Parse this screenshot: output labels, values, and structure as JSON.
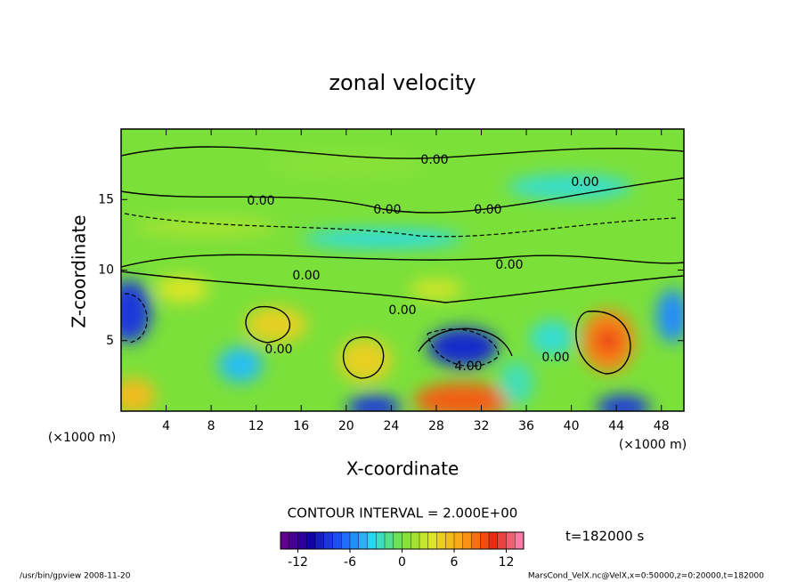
{
  "chart_data": {
    "type": "contour",
    "title": "zonal velocity",
    "xlabel": "X-coordinate",
    "ylabel": "Z-coordinate",
    "x_unit_left": "(×1000 m)",
    "x_unit_right": "(×1000 m)",
    "xlim": [
      0,
      50
    ],
    "xticks": [
      4,
      8,
      12,
      16,
      20,
      24,
      28,
      32,
      36,
      40,
      44,
      48
    ],
    "ylim": [
      0,
      20
    ],
    "yticks": [
      5,
      10,
      15
    ],
    "contour_labels": [
      {
        "value": 0,
        "label": "0.00"
      },
      {
        "value": 0,
        "label": "0.00"
      },
      {
        "value": 0,
        "label": "0.00"
      },
      {
        "value": 0,
        "label": "0.00"
      },
      {
        "value": 0,
        "label": "0.00"
      },
      {
        "value": 0,
        "label": "0.00"
      },
      {
        "value": 0,
        "label": "0.00"
      },
      {
        "value": 0,
        "label": "0.00"
      },
      {
        "value": 0,
        "label": "0.00"
      },
      {
        "value": 0,
        "label": "0.00"
      },
      {
        "value": 4,
        "label": "4.00"
      }
    ],
    "contour_interval_text": "CONTOUR INTERVAL = 2.000E+00",
    "time_text": "t=182000 s",
    "clim": [
      -14,
      14
    ],
    "cticks": [
      -12,
      -6,
      0,
      6,
      12
    ],
    "footer_left": "/usr/bin/gpview  2008-11-20",
    "footer_right": "MarsCond_VelX.nc@VelX,x=0:50000,z=0:20000,t=182000"
  }
}
